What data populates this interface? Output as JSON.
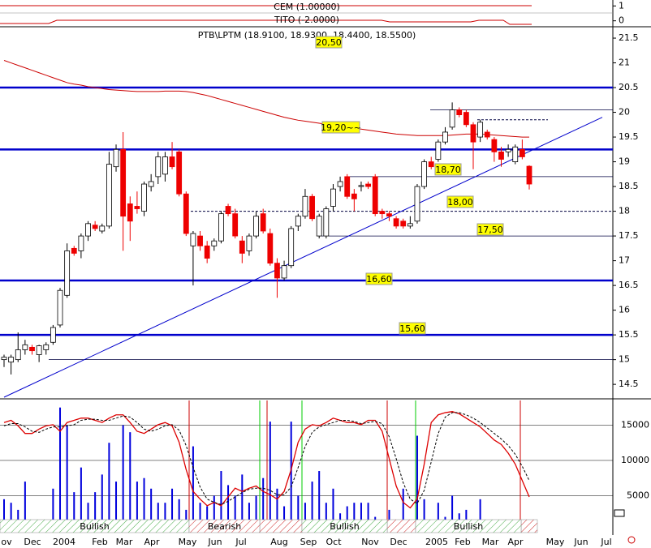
{
  "chart_data": [
    {
      "type": "indicator",
      "labels": [
        "CEM (1.00000)",
        "TITO (-2.0000)"
      ],
      "ylim": [
        -0.4,
        1.4
      ],
      "yticks": [
        1,
        0
      ]
    },
    {
      "type": "candlestick",
      "title": "PTB\\LPTM (18.9100, 18.9300, 18.4400, 18.5500)",
      "ylim": [
        14.24,
        21.73
      ],
      "yticks": [
        14.5,
        15.0,
        15.5,
        16.0,
        16.5,
        17.0,
        17.5,
        18.0,
        18.5,
        19.0,
        19.5,
        20.0,
        20.5,
        21.0,
        21.5
      ],
      "xticks": [
        "ov",
        "Dec",
        "2004",
        "Feb",
        "Mar",
        "Apr",
        "May",
        "Jun",
        "Jul",
        "Aug",
        "Sep",
        "Oct",
        "Nov",
        "Dec",
        "2005",
        "Feb",
        "Mar",
        "Apr",
        "May",
        "Jun",
        "Jul"
      ],
      "ohlc": [
        [
          15.0,
          15.1,
          14.85,
          15.05
        ],
        [
          14.95,
          15.1,
          14.7,
          15.05
        ],
        [
          15.0,
          15.55,
          14.95,
          15.2
        ],
        [
          15.2,
          15.4,
          15.1,
          15.3
        ],
        [
          15.25,
          15.3,
          15.1,
          15.18
        ],
        [
          15.1,
          15.3,
          14.95,
          15.28
        ],
        [
          15.2,
          15.35,
          15.1,
          15.3
        ],
        [
          15.35,
          15.7,
          15.3,
          15.65
        ],
        [
          15.7,
          16.45,
          15.65,
          16.4
        ],
        [
          16.3,
          17.35,
          16.25,
          17.2
        ],
        [
          17.25,
          17.3,
          17.1,
          17.15
        ],
        [
          17.2,
          17.55,
          17.05,
          17.5
        ],
        [
          17.5,
          17.8,
          17.4,
          17.75
        ],
        [
          17.72,
          17.8,
          17.6,
          17.65
        ],
        [
          17.6,
          17.75,
          17.55,
          17.7
        ],
        [
          17.7,
          19.2,
          17.65,
          18.95
        ],
        [
          18.9,
          19.35,
          18.8,
          19.25
        ],
        [
          19.25,
          19.6,
          17.2,
          17.9
        ],
        [
          18.15,
          18.3,
          17.4,
          17.8
        ],
        [
          18.1,
          18.4,
          17.95,
          18.05
        ],
        [
          18.0,
          18.6,
          17.9,
          18.55
        ],
        [
          18.5,
          18.75,
          18.4,
          18.6
        ],
        [
          18.7,
          19.2,
          18.55,
          19.1
        ],
        [
          18.75,
          19.2,
          18.6,
          19.1
        ],
        [
          19.1,
          19.4,
          18.85,
          18.9
        ],
        [
          19.2,
          19.25,
          18.3,
          18.35
        ],
        [
          18.35,
          18.4,
          17.5,
          17.55
        ],
        [
          17.3,
          17.6,
          16.5,
          17.55
        ],
        [
          17.5,
          17.6,
          17.2,
          17.3
        ],
        [
          17.3,
          17.4,
          16.95,
          17.05
        ],
        [
          17.3,
          17.45,
          17.2,
          17.4
        ],
        [
          17.4,
          18.0,
          17.35,
          17.95
        ],
        [
          18.1,
          18.15,
          17.9,
          17.95
        ],
        [
          17.95,
          18.05,
          17.45,
          17.5
        ],
        [
          17.4,
          17.5,
          16.95,
          17.15
        ],
        [
          17.2,
          17.55,
          17.1,
          17.5
        ],
        [
          17.5,
          18.0,
          17.45,
          17.9
        ],
        [
          17.95,
          18.05,
          17.55,
          17.6
        ],
        [
          17.55,
          17.65,
          16.9,
          16.95
        ],
        [
          16.95,
          17.05,
          16.25,
          16.65
        ],
        [
          16.65,
          17.0,
          16.6,
          16.9
        ],
        [
          16.9,
          17.7,
          16.85,
          17.65
        ],
        [
          17.7,
          17.95,
          17.6,
          17.9
        ],
        [
          17.9,
          18.45,
          17.85,
          18.3
        ],
        [
          18.3,
          18.35,
          17.8,
          17.85
        ],
        [
          17.5,
          17.95,
          17.45,
          17.9
        ],
        [
          17.5,
          18.1,
          17.45,
          18.05
        ],
        [
          18.1,
          18.55,
          18.0,
          18.45
        ],
        [
          18.5,
          18.7,
          18.4,
          18.6
        ],
        [
          18.7,
          18.75,
          18.25,
          18.3
        ],
        [
          18.35,
          18.45,
          18.0,
          18.25
        ],
        [
          18.5,
          18.6,
          18.4,
          18.52
        ],
        [
          18.55,
          18.6,
          18.45,
          18.5
        ],
        [
          18.7,
          18.75,
          17.9,
          17.95
        ],
        [
          18.0,
          18.05,
          17.85,
          17.95
        ],
        [
          17.95,
          18.0,
          17.8,
          17.9
        ],
        [
          17.85,
          17.9,
          17.65,
          17.7
        ],
        [
          17.8,
          17.85,
          17.65,
          17.7
        ],
        [
          17.7,
          17.9,
          17.65,
          17.75
        ],
        [
          17.8,
          18.55,
          17.75,
          18.5
        ],
        [
          18.5,
          19.05,
          18.45,
          19.0
        ],
        [
          19.0,
          19.1,
          18.85,
          18.9
        ],
        [
          19.05,
          19.45,
          19.0,
          19.4
        ],
        [
          19.4,
          19.7,
          19.35,
          19.6
        ],
        [
          19.7,
          20.2,
          19.65,
          20.05
        ],
        [
          20.05,
          20.1,
          19.9,
          19.95
        ],
        [
          20.0,
          20.05,
          19.7,
          19.75
        ],
        [
          19.75,
          19.8,
          18.85,
          19.4
        ],
        [
          19.5,
          19.85,
          19.4,
          19.8
        ],
        [
          19.6,
          19.65,
          19.45,
          19.5
        ],
        [
          19.45,
          19.5,
          19.0,
          19.2
        ],
        [
          19.2,
          19.3,
          18.9,
          19.05
        ],
        [
          19.2,
          19.35,
          19.1,
          19.25
        ],
        [
          19.0,
          19.35,
          18.95,
          19.3
        ],
        [
          19.25,
          19.45,
          19.05,
          19.1
        ],
        [
          18.91,
          18.93,
          18.44,
          18.55
        ]
      ],
      "moving_average": {
        "color": "#cc0000",
        "values": [
          21.05,
          21.0,
          20.95,
          20.9,
          20.85,
          20.8,
          20.75,
          20.7,
          20.65,
          20.6,
          20.57,
          20.55,
          20.52,
          20.5,
          20.48,
          20.46,
          20.45,
          20.44,
          20.43,
          20.42,
          20.42,
          20.42,
          20.42,
          20.43,
          20.43,
          20.43,
          20.42,
          20.4,
          20.37,
          20.34,
          20.3,
          20.26,
          20.22,
          20.18,
          20.14,
          20.1,
          20.06,
          20.02,
          19.98,
          19.94,
          19.9,
          19.87,
          19.84,
          19.82,
          19.8,
          19.78,
          19.76,
          19.74,
          19.72,
          19.7,
          19.68,
          19.66,
          19.64,
          19.62,
          19.6,
          19.58,
          19.56,
          19.55,
          19.54,
          19.53,
          19.53,
          19.53,
          19.53,
          19.53,
          19.54,
          19.55,
          19.56,
          19.56,
          19.56,
          19.55,
          19.54,
          19.53,
          19.52,
          19.51,
          19.5,
          19.5
        ]
      },
      "levels": [
        20.5,
        19.25,
        16.6,
        15.5
      ],
      "thin_levels": [
        20.05,
        18.7,
        17.5,
        15.0
      ],
      "dashed_levels": [
        18.0,
        19.85
      ],
      "trendline": [
        14.24,
        19.9
      ],
      "annotations": [
        "20,50",
        "19,20~~",
        "18,70",
        "18,00",
        "17,50",
        "16,60",
        "15,60"
      ],
      "up_color": "#ffffff",
      "down_color": "#ee0000",
      "level_color": "#0000cc"
    },
    {
      "type": "volume",
      "ylim": [
        0,
        18500
      ],
      "yticks": [
        5000,
        10000,
        15000
      ],
      "color": "#0000dd",
      "values": [
        4500,
        4000,
        3000,
        7000,
        1500,
        1000,
        1000,
        6000,
        17500,
        15000,
        5500,
        9000,
        4000,
        5500,
        8000,
        12500,
        7000,
        15000,
        14000,
        7000,
        7500,
        6000,
        4000,
        4000,
        6000,
        4500,
        3000,
        12000,
        4000,
        3500,
        5000,
        8500,
        6500,
        5000,
        8000,
        4000,
        5000,
        7500,
        15500,
        6000,
        3500,
        15500,
        5000,
        4000,
        7000,
        8500,
        4000,
        6000,
        2500,
        3500,
        4000,
        4000,
        4000,
        2000,
        1000,
        3000,
        1000,
        6000,
        1500,
        13500,
        4500,
        1500,
        4000,
        2000,
        5000,
        2500,
        3000,
        1500,
        4500,
        1000,
        1500,
        500,
        800,
        500,
        1000,
        1000
      ],
      "oscillator_lim": [
        0,
        100
      ],
      "oscillator": [
        {
          "color": "#dd0000",
          "values": [
            88,
            90,
            85,
            78,
            78,
            82,
            85,
            86,
            80,
            88,
            90,
            92,
            92,
            90,
            88,
            92,
            95,
            95,
            88,
            80,
            78,
            82,
            86,
            88,
            85,
            70,
            45,
            25,
            18,
            12,
            15,
            12,
            20,
            28,
            25,
            28,
            30,
            25,
            22,
            18,
            25,
            45,
            70,
            82,
            86,
            85,
            88,
            92,
            90,
            88,
            88,
            86,
            90,
            90,
            80,
            55,
            30,
            15,
            10,
            18,
            50,
            88,
            95,
            97,
            98,
            96,
            92,
            88,
            84,
            78,
            72,
            68,
            60,
            50,
            35,
            20
          ]
        },
        {
          "color": "#000000",
          "values": [
            85,
            87,
            87,
            84,
            80,
            79,
            82,
            84,
            84,
            85,
            86,
            90,
            91,
            91,
            90,
            90,
            92,
            94,
            93,
            88,
            82,
            80,
            82,
            85,
            86,
            81,
            67,
            47,
            29,
            18,
            15,
            13,
            16,
            20,
            24,
            27,
            28,
            28,
            26,
            22,
            22,
            29,
            47,
            66,
            79,
            84,
            86,
            88,
            90,
            90,
            89,
            87,
            88,
            89,
            87,
            75,
            55,
            33,
            18,
            14,
            26,
            52,
            78,
            93,
            97,
            97,
            95,
            92,
            88,
            83,
            78,
            73,
            67,
            59,
            48,
            35
          ]
        }
      ],
      "signals": [
        "Bullish",
        "Bearish",
        "Bullish",
        "Bullish"
      ]
    }
  ]
}
